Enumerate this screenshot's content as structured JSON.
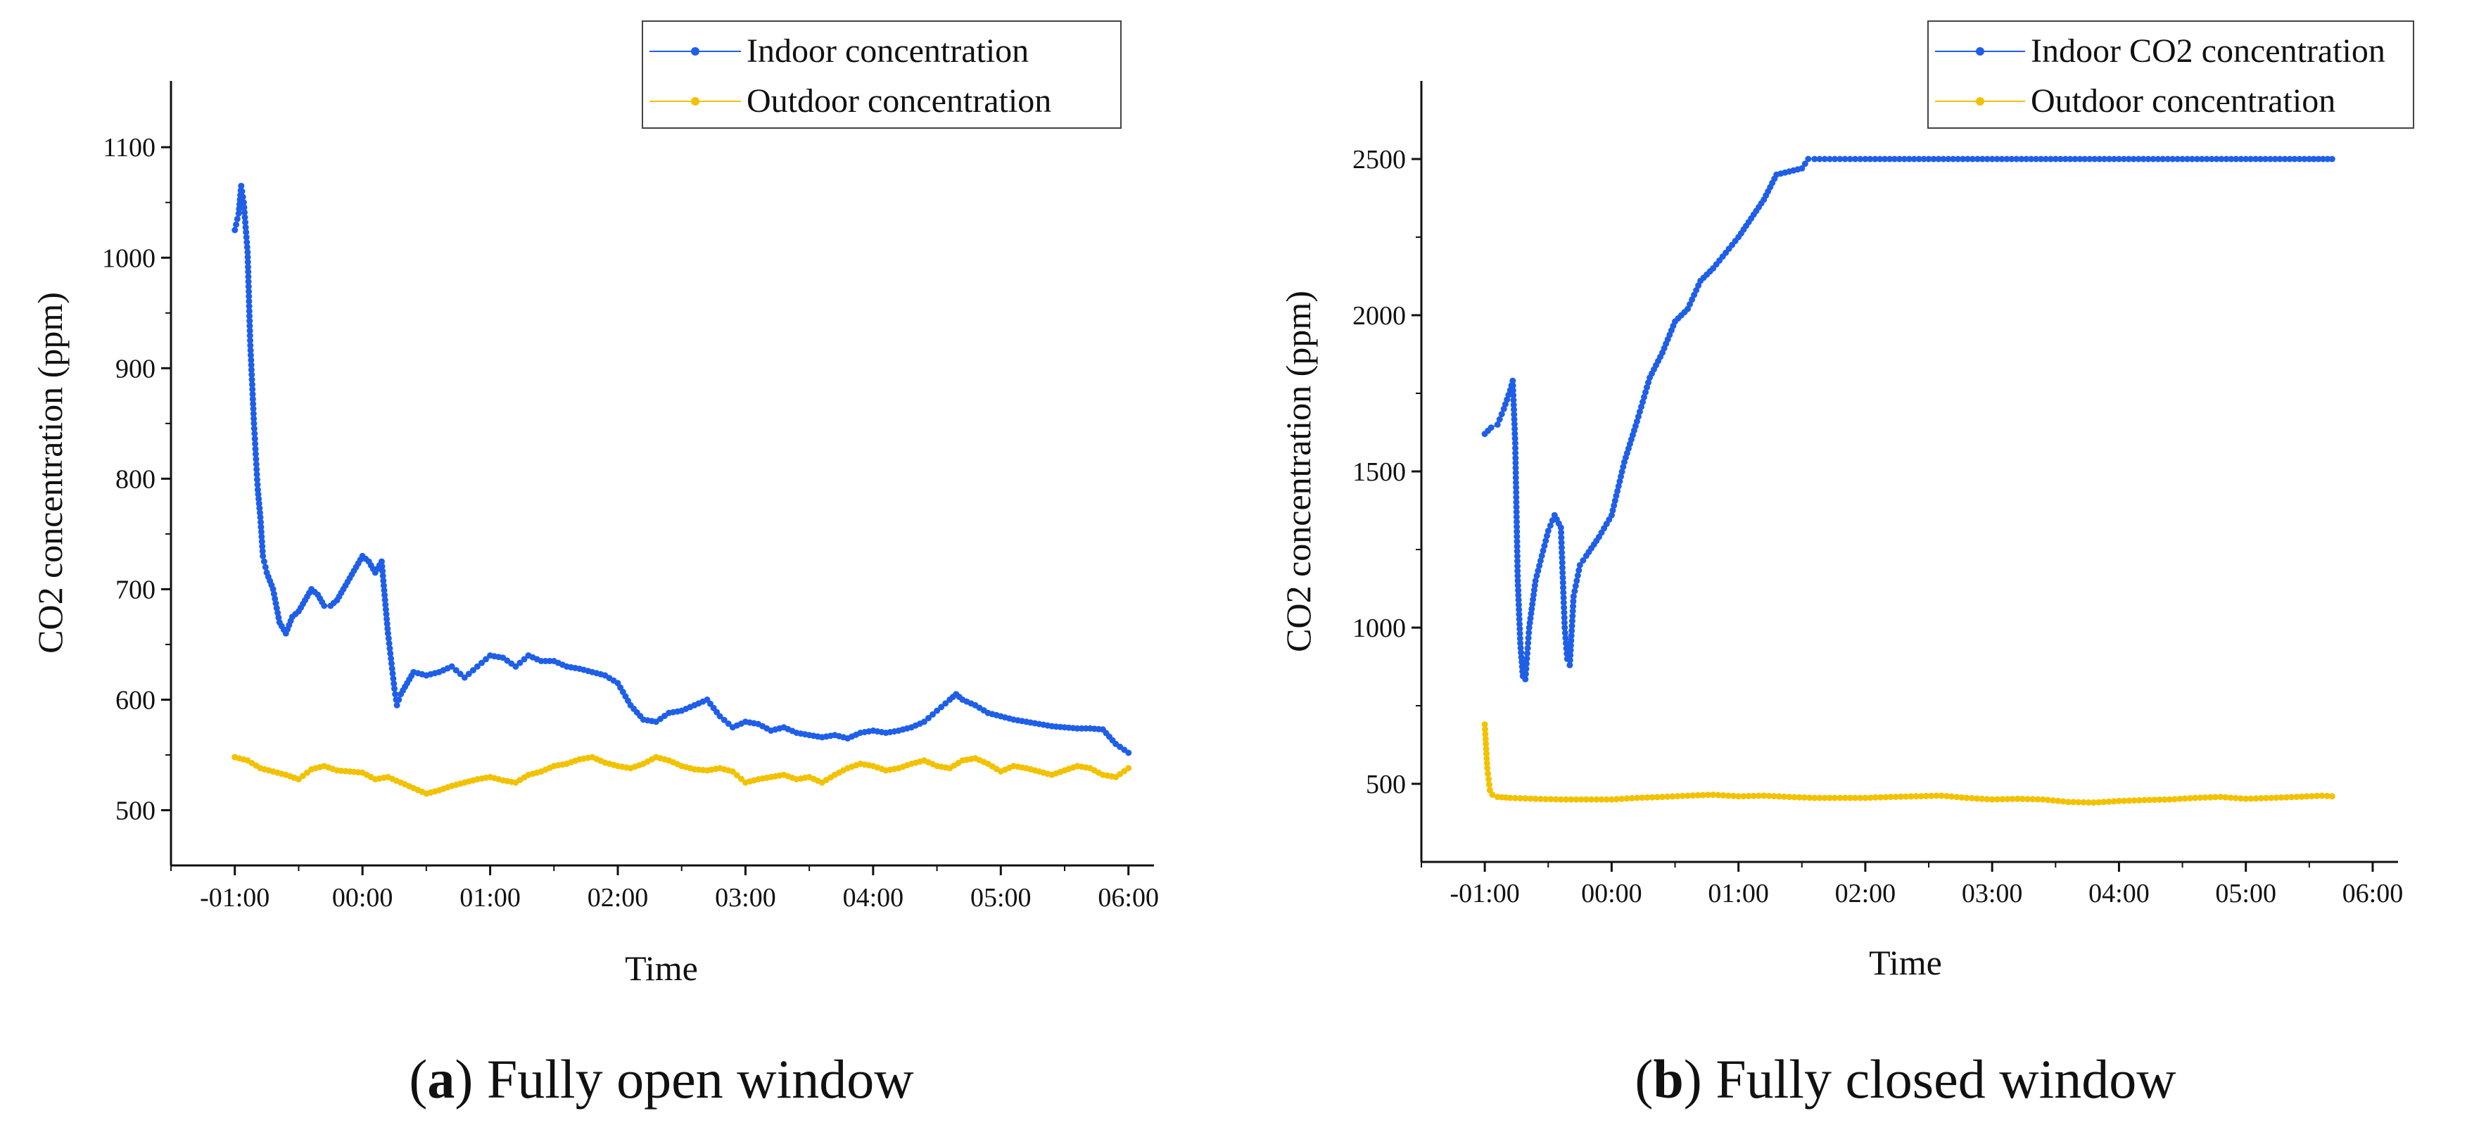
{
  "colors": {
    "indoor": "#1f5fe8",
    "outdoor": "#f2c200",
    "axis": "#111111"
  },
  "chart_data": [
    {
      "type": "line",
      "panel": "a",
      "caption_letter": "a",
      "caption_text": ") Fully open window",
      "caption_open": "(",
      "xlabel": "Time",
      "ylabel": "CO2 concentration (ppm)",
      "xlim": [
        -1.5,
        6.2
      ],
      "ylim": [
        450,
        1160
      ],
      "x_ticks": [
        -1,
        0,
        1,
        2,
        3,
        4,
        5,
        6
      ],
      "x_tick_labels": [
        "-01:00",
        "00:00",
        "01:00",
        "02:00",
        "03:00",
        "04:00",
        "05:00",
        "06:00"
      ],
      "y_ticks": [
        500,
        600,
        700,
        800,
        900,
        1000,
        1100
      ],
      "y_tick_labels": [
        "500",
        "600",
        "700",
        "800",
        "900",
        "1000",
        "1100"
      ],
      "legend_position": "top-right",
      "series": [
        {
          "name": "Indoor concentration",
          "color": "#1f5fe8",
          "x": [
            -1.0,
            -0.97,
            -0.95,
            -0.93,
            -0.9,
            -0.88,
            -0.85,
            -0.82,
            -0.8,
            -0.78,
            -0.75,
            -0.7,
            -0.65,
            -0.6,
            -0.55,
            -0.5,
            -0.45,
            -0.4,
            -0.35,
            -0.3,
            -0.25,
            -0.2,
            -0.15,
            -0.1,
            -0.05,
            0.0,
            0.05,
            0.1,
            0.15,
            0.2,
            0.25,
            0.27,
            0.3,
            0.35,
            0.4,
            0.5,
            0.6,
            0.7,
            0.8,
            0.9,
            1.0,
            1.1,
            1.2,
            1.3,
            1.4,
            1.5,
            1.6,
            1.7,
            1.8,
            1.9,
            2.0,
            2.1,
            2.2,
            2.3,
            2.4,
            2.5,
            2.6,
            2.7,
            2.8,
            2.9,
            3.0,
            3.1,
            3.2,
            3.3,
            3.4,
            3.5,
            3.6,
            3.7,
            3.8,
            3.9,
            4.0,
            4.1,
            4.2,
            4.3,
            4.4,
            4.5,
            4.6,
            4.65,
            4.7,
            4.8,
            4.9,
            5.0,
            5.1,
            5.2,
            5.3,
            5.4,
            5.5,
            5.6,
            5.7,
            5.8,
            5.9,
            6.0
          ],
          "y": [
            1025,
            1040,
            1065,
            1050,
            1005,
            925,
            850,
            790,
            765,
            730,
            715,
            700,
            670,
            660,
            675,
            680,
            690,
            700,
            695,
            685,
            685,
            690,
            700,
            710,
            720,
            730,
            725,
            715,
            725,
            660,
            610,
            595,
            605,
            615,
            625,
            622,
            625,
            630,
            620,
            630,
            640,
            638,
            630,
            640,
            635,
            635,
            630,
            628,
            625,
            622,
            615,
            595,
            582,
            580,
            588,
            590,
            595,
            600,
            585,
            575,
            580,
            578,
            572,
            575,
            570,
            568,
            566,
            568,
            565,
            570,
            572,
            570,
            572,
            575,
            580,
            590,
            600,
            605,
            600,
            595,
            588,
            585,
            582,
            580,
            578,
            576,
            575,
            574,
            574,
            573,
            560,
            552
          ]
        },
        {
          "name": "Outdoor concentration",
          "color": "#f2c200",
          "x": [
            -1.0,
            -0.9,
            -0.8,
            -0.7,
            -0.6,
            -0.5,
            -0.4,
            -0.3,
            -0.2,
            -0.1,
            0.0,
            0.1,
            0.2,
            0.3,
            0.4,
            0.5,
            0.6,
            0.7,
            0.8,
            0.9,
            1.0,
            1.1,
            1.2,
            1.3,
            1.4,
            1.5,
            1.6,
            1.7,
            1.8,
            1.9,
            2.0,
            2.1,
            2.2,
            2.3,
            2.4,
            2.5,
            2.6,
            2.7,
            2.8,
            2.9,
            3.0,
            3.1,
            3.2,
            3.3,
            3.4,
            3.5,
            3.6,
            3.7,
            3.8,
            3.9,
            4.0,
            4.1,
            4.2,
            4.3,
            4.4,
            4.5,
            4.6,
            4.7,
            4.8,
            4.9,
            5.0,
            5.1,
            5.2,
            5.3,
            5.4,
            5.5,
            5.6,
            5.7,
            5.8,
            5.9,
            6.0
          ],
          "y": [
            548,
            545,
            538,
            535,
            532,
            528,
            537,
            540,
            536,
            535,
            534,
            528,
            530,
            525,
            520,
            515,
            518,
            522,
            525,
            528,
            530,
            527,
            525,
            532,
            535,
            540,
            542,
            546,
            548,
            543,
            540,
            538,
            542,
            548,
            545,
            540,
            537,
            536,
            538,
            535,
            525,
            528,
            530,
            532,
            528,
            530,
            525,
            532,
            538,
            542,
            540,
            536,
            538,
            542,
            545,
            540,
            538,
            545,
            547,
            542,
            535,
            540,
            538,
            535,
            532,
            536,
            540,
            538,
            532,
            530,
            538
          ]
        }
      ]
    },
    {
      "type": "line",
      "panel": "b",
      "caption_letter": "b",
      "caption_text": ") Fully closed window",
      "caption_open": "(",
      "xlabel": "Time",
      "ylabel": "CO2 concentration (ppm)",
      "xlim": [
        -1.5,
        6.2
      ],
      "ylim": [
        250,
        2750
      ],
      "x_ticks": [
        -1,
        0,
        1,
        2,
        3,
        4,
        5,
        6
      ],
      "x_tick_labels": [
        "-01:00",
        "00:00",
        "01:00",
        "02:00",
        "03:00",
        "04:00",
        "05:00",
        "06:00"
      ],
      "y_ticks": [
        500,
        1000,
        1500,
        2000,
        2500
      ],
      "y_tick_labels": [
        "500",
        "1000",
        "1500",
        "2000",
        "2500"
      ],
      "legend_position": "top-right",
      "series": [
        {
          "name": "Indoor CO2 concentration",
          "color": "#1f5fe8",
          "x": [
            -1.0,
            -0.95,
            -0.9,
            -0.85,
            -0.8,
            -0.78,
            -0.76,
            -0.74,
            -0.72,
            -0.7,
            -0.68,
            -0.65,
            -0.6,
            -0.55,
            -0.5,
            -0.45,
            -0.4,
            -0.37,
            -0.35,
            -0.33,
            -0.3,
            -0.25,
            -0.2,
            -0.1,
            0.0,
            0.1,
            0.2,
            0.3,
            0.4,
            0.5,
            0.6,
            0.7,
            0.8,
            0.9,
            1.0,
            1.1,
            1.2,
            1.3,
            1.4,
            1.5,
            1.55,
            1.6,
            2.0,
            2.5,
            3.0,
            3.5,
            4.0,
            4.5,
            5.0,
            5.5,
            5.68
          ],
          "y": [
            1620,
            1640,
            1650,
            1700,
            1760,
            1790,
            1590,
            1150,
            950,
            845,
            835,
            1000,
            1150,
            1230,
            1310,
            1360,
            1320,
            1000,
            900,
            880,
            1100,
            1200,
            1230,
            1290,
            1360,
            1530,
            1660,
            1800,
            1880,
            1980,
            2020,
            2110,
            2150,
            2200,
            2250,
            2310,
            2370,
            2450,
            2460,
            2470,
            2500,
            2500,
            2500,
            2500,
            2500,
            2500,
            2500,
            2500,
            2500,
            2500,
            2500
          ]
        },
        {
          "name": "Outdoor concentration",
          "color": "#f2c200",
          "x": [
            -1.0,
            -0.98,
            -0.96,
            -0.94,
            -0.9,
            -0.8,
            -0.6,
            -0.4,
            -0.2,
            0.0,
            0.2,
            0.4,
            0.6,
            0.8,
            1.0,
            1.2,
            1.4,
            1.6,
            1.8,
            2.0,
            2.2,
            2.4,
            2.6,
            2.8,
            3.0,
            3.2,
            3.4,
            3.6,
            3.8,
            4.0,
            4.2,
            4.4,
            4.6,
            4.8,
            5.0,
            5.2,
            5.4,
            5.6,
            5.68
          ],
          "y": [
            690,
            550,
            480,
            465,
            458,
            455,
            452,
            450,
            450,
            450,
            455,
            458,
            462,
            465,
            460,
            462,
            458,
            455,
            455,
            455,
            458,
            460,
            462,
            455,
            450,
            452,
            450,
            442,
            440,
            445,
            448,
            450,
            455,
            458,
            452,
            455,
            458,
            462,
            460
          ]
        }
      ]
    }
  ]
}
